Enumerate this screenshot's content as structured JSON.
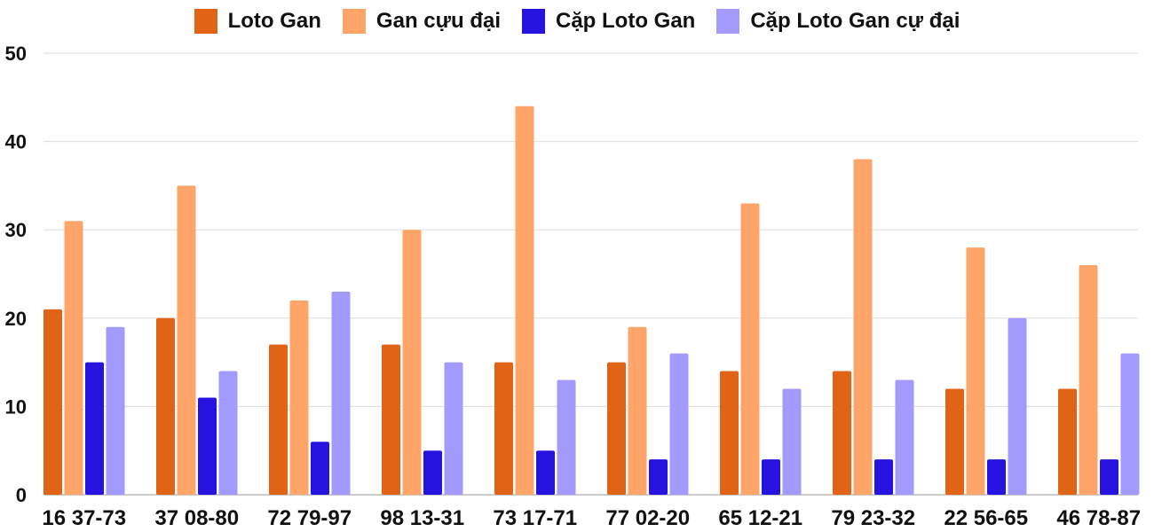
{
  "chart_data": {
    "type": "bar",
    "title": "",
    "xlabel": "",
    "ylabel": "",
    "ylim": [
      0,
      50
    ],
    "yticks": [
      0,
      10,
      20,
      30,
      40,
      50
    ],
    "grid": true,
    "legend_position": "top",
    "categories": [
      "16 37-73",
      "37 08-80",
      "72 79-97",
      "98 13-31",
      "73 17-71",
      "77 02-20",
      "65 12-21",
      "79 23-32",
      "22 56-65",
      "46 78-87"
    ],
    "series": [
      {
        "name": "Loto Gan",
        "color": "#e06316",
        "values": [
          21,
          20,
          17,
          17,
          15,
          15,
          14,
          14,
          12,
          12
        ]
      },
      {
        "name": "Gan cựu đại",
        "color": "#ffa56a",
        "values": [
          31,
          35,
          22,
          30,
          44,
          19,
          33,
          38,
          28,
          26
        ]
      },
      {
        "name": "Cặp Loto Gan",
        "color": "#2613e0",
        "values": [
          15,
          11,
          6,
          5,
          5,
          4,
          4,
          4,
          4,
          4
        ]
      },
      {
        "name": "Cặp Loto Gan cự đại",
        "color": "#a29afc",
        "values": [
          19,
          14,
          23,
          15,
          13,
          16,
          12,
          13,
          20,
          16
        ]
      }
    ]
  }
}
